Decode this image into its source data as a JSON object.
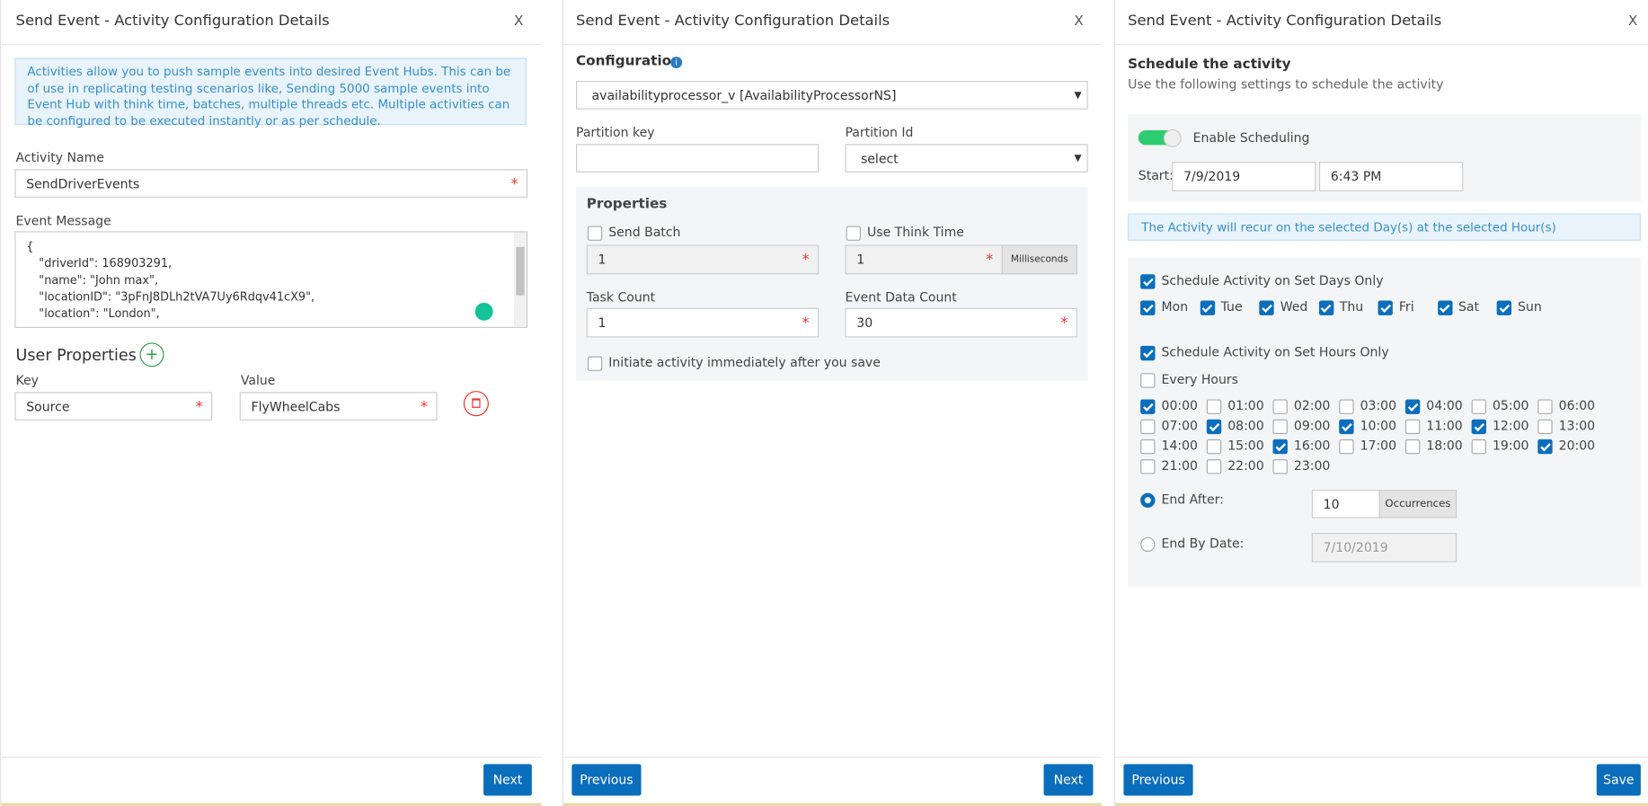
{
  "required_mark": "*",
  "panel1": {
    "title": "Send Event - Activity Configuration Details",
    "close": "X",
    "info": "Activities allow you to push sample events into desired Event Hubs. This can be of use in replicating testing scenarios like, Sending 5000 sample events into Event Hub with think time, batches, multiple threads etc. Multiple activities can be configured to be executed instantly or as per schedule.",
    "activity_name_label": "Activity Name",
    "activity_name_value": "SendDriverEvents",
    "event_message_label": "Event Message",
    "event_message_lines": [
      "{",
      "\"driverId\": 168903291,",
      "\"name\": \"John max\",",
      "\"locationID\": \"3pFnJ8DLh2tVA7Uy6Rdqv41cX9\",",
      "\"location\": \"London\","
    ],
    "user_properties_title": "User Properties",
    "key_label": "Key",
    "value_label": "Value",
    "key_value": "Source",
    "value_value": "FlyWheelCabs",
    "next": "Next"
  },
  "panel2": {
    "title": "Send Event - Activity Configuration Details",
    "close": "X",
    "configuration_label": "Configuration",
    "configuration_value": "availabilityprocessor_v [AvailabilityProcessorNS]",
    "partition_key_label": "Partition key",
    "partition_id_label": "Partition Id",
    "partition_id_value": "select",
    "properties_title": "Properties",
    "send_batch": {
      "label": "Send Batch",
      "checked": false,
      "value": "1"
    },
    "think_time": {
      "label": "Use Think Time",
      "checked": false,
      "value": "1",
      "unit": "Milliseconds"
    },
    "task_count_label": "Task Count",
    "task_count_value": "1",
    "event_data_count_label": "Event Data Count",
    "event_data_count_value": "30",
    "initiate": {
      "label": "Initiate activity immediately after you save",
      "checked": false
    },
    "previous": "Previous",
    "next": "Next"
  },
  "panel3": {
    "title": "Send Event - Activity Configuration Details",
    "close": "X",
    "schedule_title": "Schedule the activity",
    "schedule_subtitle": "Use the following settings to schedule the activity",
    "enable": {
      "label": "Enable Scheduling",
      "on": true
    },
    "start_label": "Start:",
    "start_date": "7/9/2019",
    "start_time": "6:43 PM",
    "recur_note": "The Activity will recur on the selected Day(s) at the selected Hour(s)",
    "days_option": {
      "label": "Schedule Activity on Set Days Only",
      "checked": true
    },
    "days": [
      {
        "name": "Mon",
        "checked": true
      },
      {
        "name": "Tue",
        "checked": true
      },
      {
        "name": "Wed",
        "checked": true
      },
      {
        "name": "Thu",
        "checked": true
      },
      {
        "name": "Fri",
        "checked": true
      },
      {
        "name": "Sat",
        "checked": true
      },
      {
        "name": "Sun",
        "checked": true
      }
    ],
    "hours_option": {
      "label": "Schedule Activity on Set Hours Only",
      "checked": true
    },
    "every_hours": {
      "label": "Every Hours",
      "checked": false
    },
    "hours": [
      {
        "label": "00:00",
        "checked": true
      },
      {
        "label": "01:00",
        "checked": false
      },
      {
        "label": "02:00",
        "checked": false
      },
      {
        "label": "03:00",
        "checked": false
      },
      {
        "label": "04:00",
        "checked": true
      },
      {
        "label": "05:00",
        "checked": false
      },
      {
        "label": "06:00",
        "checked": false
      },
      {
        "label": "07:00",
        "checked": false
      },
      {
        "label": "08:00",
        "checked": true
      },
      {
        "label": "09:00",
        "checked": false
      },
      {
        "label": "10:00",
        "checked": true
      },
      {
        "label": "11:00",
        "checked": false
      },
      {
        "label": "12:00",
        "checked": true
      },
      {
        "label": "13:00",
        "checked": false
      },
      {
        "label": "14:00",
        "checked": false
      },
      {
        "label": "15:00",
        "checked": false
      },
      {
        "label": "16:00",
        "checked": true
      },
      {
        "label": "17:00",
        "checked": false
      },
      {
        "label": "18:00",
        "checked": false
      },
      {
        "label": "19:00",
        "checked": false
      },
      {
        "label": "20:00",
        "checked": true
      },
      {
        "label": "21:00",
        "checked": false
      },
      {
        "label": "22:00",
        "checked": false
      },
      {
        "label": "23:00",
        "checked": false
      }
    ],
    "end_after": {
      "label": "End After:",
      "value": "10",
      "unit": "Occurrences",
      "selected": true
    },
    "end_by": {
      "label": "End By Date:",
      "value": "7/10/2019",
      "selected": false
    },
    "previous": "Previous",
    "save": "Save"
  }
}
